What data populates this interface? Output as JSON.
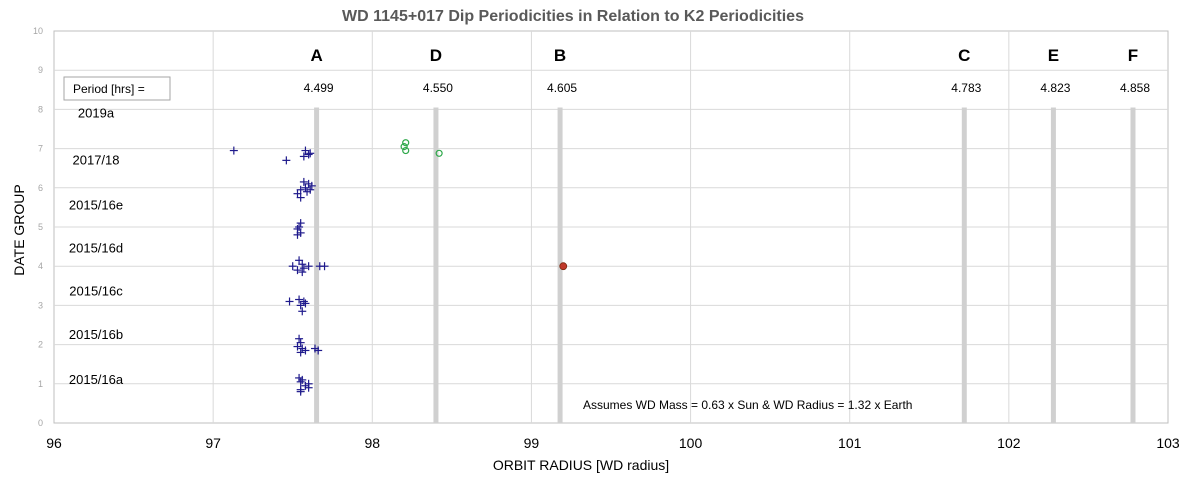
{
  "chart_data": {
    "type": "scatter",
    "title": "WD 1145+017 Dip Periodicities in Relation to K2 Periodicities",
    "xlabel": "ORBIT RADIUS [WD radius]",
    "ylabel": "DATE GROUP",
    "xlim": [
      96,
      103
    ],
    "ylim": [
      0,
      10
    ],
    "xticks": [
      96,
      97,
      98,
      99,
      100,
      101,
      102,
      103
    ],
    "yticks": [
      0,
      1,
      2,
      3,
      4,
      5,
      6,
      7,
      8,
      9,
      10
    ],
    "grid": true,
    "period_box_label": "Period [hrs] =",
    "periods": [
      {
        "letter": "A",
        "x": 97.65,
        "value": "4.499"
      },
      {
        "letter": "D",
        "x": 98.4,
        "value": "4.550"
      },
      {
        "letter": "B",
        "x": 99.18,
        "value": "4.605"
      },
      {
        "letter": "C",
        "x": 101.72,
        "value": "4.783"
      },
      {
        "letter": "E",
        "x": 102.28,
        "value": "4.823"
      },
      {
        "letter": "F",
        "x": 102.78,
        "value": "4.858"
      }
    ],
    "date_groups": [
      {
        "label": "2019a",
        "y": 7.9
      },
      {
        "label": "2017/18",
        "y": 6.7
      },
      {
        "label": "2015/16e",
        "y": 5.55
      },
      {
        "label": "2015/16d",
        "y": 4.45
      },
      {
        "label": "2015/16c",
        "y": 3.35
      },
      {
        "label": "2015/16b",
        "y": 2.25
      },
      {
        "label": "2015/16a",
        "y": 1.1
      }
    ],
    "series": [
      {
        "marker": "plus",
        "color": "#1f1a8c",
        "points": [
          [
            97.13,
            6.95
          ],
          [
            97.46,
            6.7
          ],
          [
            97.58,
            6.95
          ],
          [
            97.6,
            6.85
          ],
          [
            97.57,
            6.8
          ],
          [
            97.61,
            6.88
          ],
          [
            97.57,
            6.15
          ],
          [
            97.6,
            6.1
          ],
          [
            97.62,
            6.05
          ],
          [
            97.58,
            6.0
          ],
          [
            97.55,
            5.95
          ],
          [
            97.59,
            5.9
          ],
          [
            97.61,
            5.95
          ],
          [
            97.53,
            5.85
          ],
          [
            97.55,
            5.75
          ],
          [
            97.55,
            5.1
          ],
          [
            97.54,
            5.0
          ],
          [
            97.53,
            4.95
          ],
          [
            97.55,
            4.85
          ],
          [
            97.53,
            4.8
          ],
          [
            97.5,
            4.0
          ],
          [
            97.54,
            4.15
          ],
          [
            97.56,
            4.05
          ],
          [
            97.57,
            3.95
          ],
          [
            97.53,
            3.9
          ],
          [
            97.6,
            4.0
          ],
          [
            97.67,
            4.0
          ],
          [
            97.7,
            4.0
          ],
          [
            97.56,
            3.85
          ],
          [
            97.48,
            3.1
          ],
          [
            97.54,
            3.15
          ],
          [
            97.57,
            3.1
          ],
          [
            97.55,
            3.0
          ],
          [
            97.56,
            2.85
          ],
          [
            97.58,
            3.05
          ],
          [
            97.54,
            2.15
          ],
          [
            97.55,
            2.05
          ],
          [
            97.53,
            1.95
          ],
          [
            97.56,
            1.9
          ],
          [
            97.58,
            1.85
          ],
          [
            97.55,
            1.8
          ],
          [
            97.64,
            1.9
          ],
          [
            97.66,
            1.85
          ],
          [
            97.54,
            1.15
          ],
          [
            97.56,
            1.1
          ],
          [
            97.55,
            1.05
          ],
          [
            97.6,
            1.0
          ],
          [
            97.58,
            0.95
          ],
          [
            97.55,
            0.85
          ],
          [
            97.6,
            0.9
          ],
          [
            97.55,
            0.8
          ]
        ]
      },
      {
        "marker": "circle",
        "color": "#2ea84a",
        "points": [
          [
            98.21,
            7.15
          ],
          [
            98.2,
            7.05
          ],
          [
            98.21,
            6.95
          ],
          [
            98.42,
            6.88
          ]
        ]
      },
      {
        "marker": "dot",
        "color": "#c0392b",
        "points": [
          [
            99.2,
            4.0
          ]
        ]
      }
    ],
    "annotation": "Assumes WD Mass = 0.63 x Sun & WD Radius  = 1.32 x Earth"
  }
}
